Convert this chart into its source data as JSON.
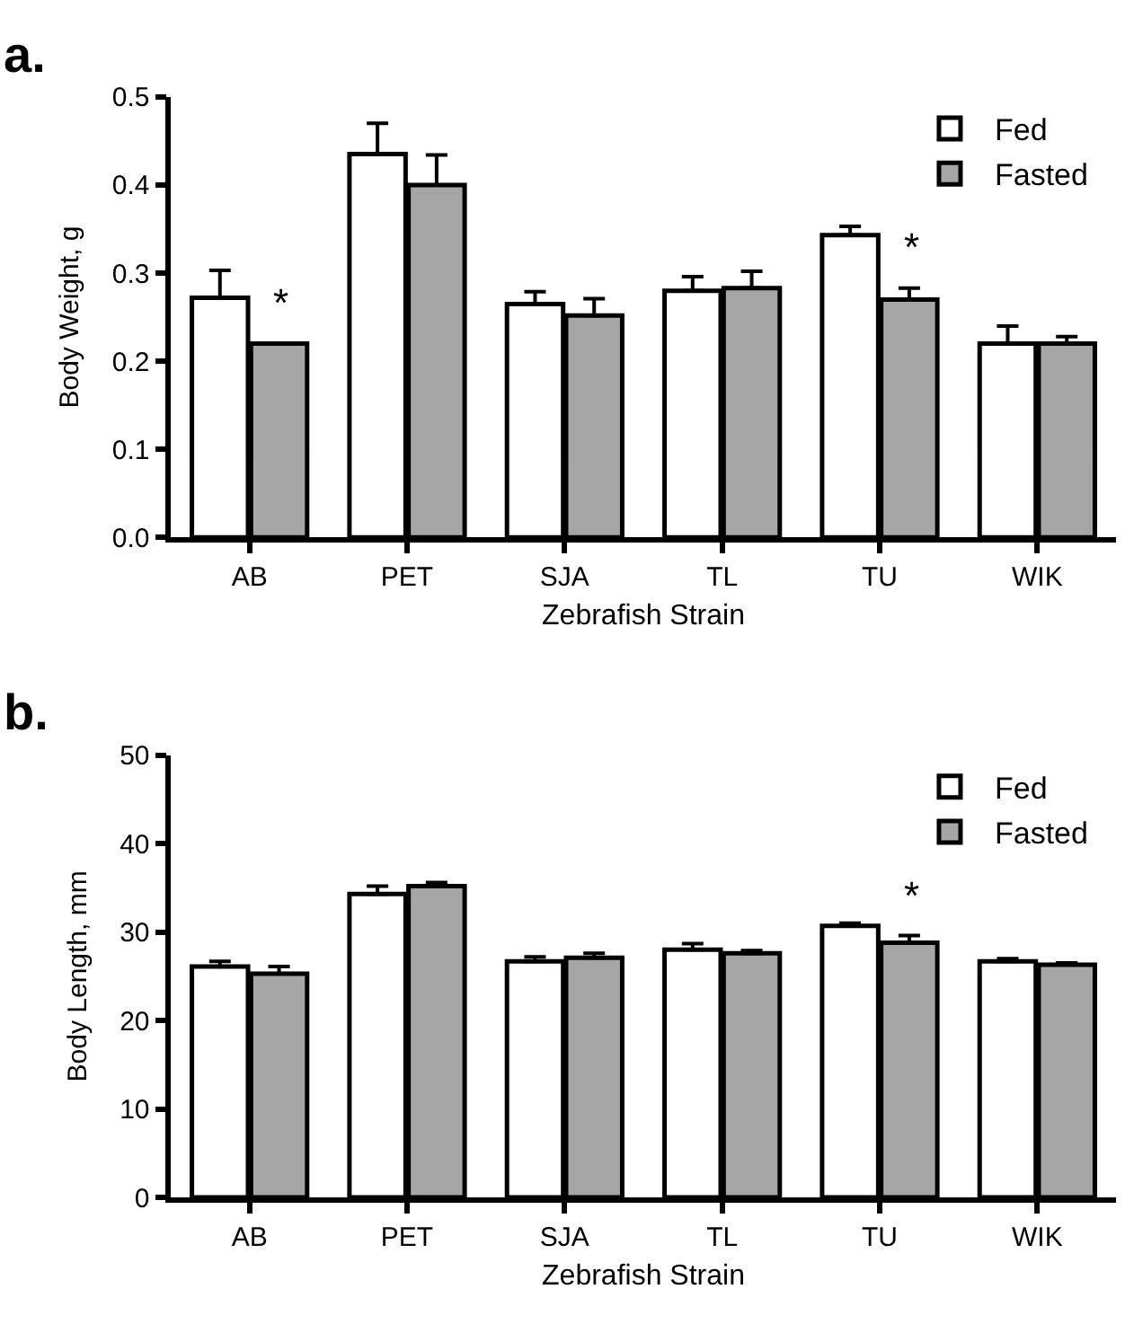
{
  "chart_data": [
    {
      "type": "bar",
      "title": "a.",
      "xlabel": "Zebrafish Strain",
      "ylabel": "Body Weight, g",
      "categories": [
        "AB",
        "PET",
        "SJA",
        "TL",
        "TU",
        "WIK"
      ],
      "series": [
        {
          "name": "Fed",
          "color": "#ffffff",
          "values": [
            0.272,
            0.435,
            0.265,
            0.28,
            0.343,
            0.22
          ],
          "errors": [
            [
              0.272,
              0.303
            ],
            [
              0.435,
              0.47
            ],
            [
              0.265,
              0.279
            ],
            [
              0.28,
              0.296
            ],
            [
              0.343,
              0.353
            ],
            [
              0.22,
              0.24
            ]
          ]
        },
        {
          "name": "Fasted",
          "color": "#a6a6a6",
          "values": [
            0.22,
            0.4,
            0.252,
            0.283,
            0.27,
            0.22
          ],
          "errors": [
            null,
            [
              0.4,
              0.434
            ],
            [
              0.252,
              0.271
            ],
            [
              0.283,
              0.302
            ],
            [
              0.27,
              0.283
            ],
            [
              0.22,
              0.228
            ]
          ]
        }
      ],
      "ylim": [
        0,
        0.5
      ],
      "yticks": [
        {
          "value": 0,
          "label": "0.0"
        },
        0.1,
        0.2,
        0.3,
        0.4,
        0.5
      ],
      "annotations": [
        {
          "text": "*",
          "x": "AB",
          "y": 0.22
        },
        {
          "text": "*",
          "x": "TU",
          "y": 0.283
        }
      ],
      "legend": "top right"
    },
    {
      "type": "bar",
      "title": "b.",
      "xlabel": "Zebrafish Strain",
      "ylabel": "Body Length, mm",
      "categories": [
        "AB",
        "PET",
        "SJA",
        "TL",
        "TU",
        "WIK"
      ],
      "series": [
        {
          "name": "Fed",
          "color": "#ffffff",
          "values": [
            26.1,
            34.3,
            26.7,
            28.0,
            30.7,
            26.7
          ],
          "errors": [
            [
              26.1,
              26.7
            ],
            [
              34.3,
              35.2
            ],
            [
              26.7,
              27.2
            ],
            [
              28.0,
              28.7
            ],
            [
              30.7,
              31.0
            ],
            [
              26.7,
              27.0
            ]
          ]
        },
        {
          "name": "Fasted",
          "color": "#a6a6a6",
          "values": [
            25.3,
            35.2,
            27.1,
            27.6,
            28.8,
            26.3
          ],
          "errors": [
            [
              25.3,
              26.1
            ],
            [
              35.2,
              35.6
            ],
            [
              27.1,
              27.6
            ],
            [
              27.6,
              27.9
            ],
            [
              28.8,
              29.6
            ],
            [
              26.3,
              26.5
            ]
          ]
        }
      ],
      "ylim": [
        0,
        50
      ],
      "yticks": [
        0,
        10,
        20,
        30,
        40,
        50
      ],
      "annotations": [
        {
          "text": "*",
          "x": "TU",
          "y": 29.6
        }
      ],
      "legend": "top right"
    }
  ]
}
